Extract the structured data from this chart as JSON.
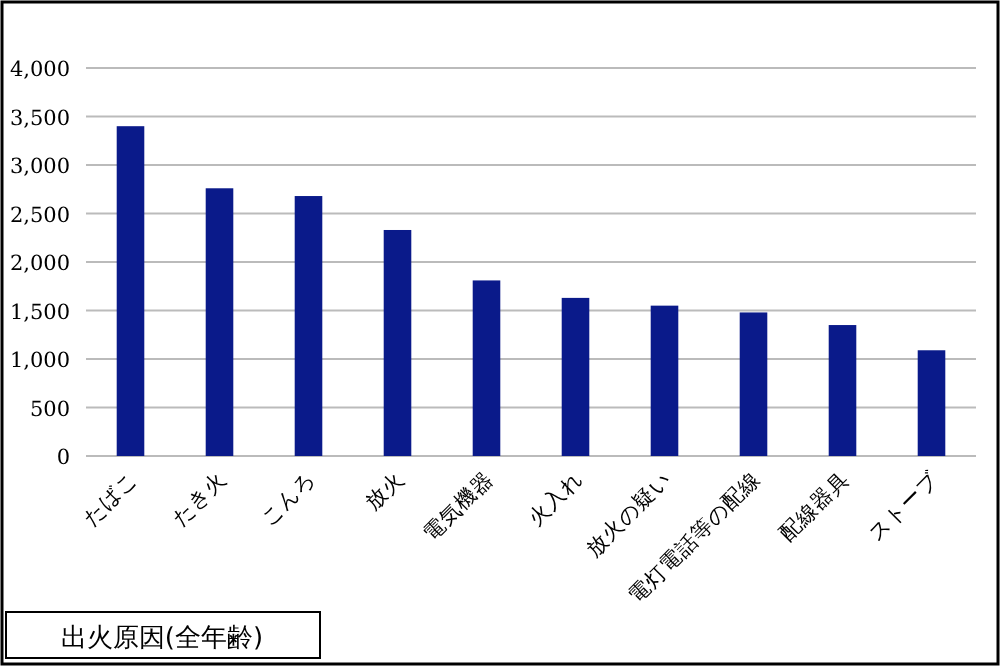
{
  "chart_data": {
    "type": "bar",
    "title": "出火原因(全年齢)",
    "categories": [
      "たばこ",
      "たき火",
      "こんろ",
      "放火",
      "電気機器",
      "火入れ",
      "放火の疑い",
      "電灯電話等の配線",
      "配線器具",
      "ストーブ"
    ],
    "values": [
      3400,
      2760,
      2680,
      2330,
      1810,
      1630,
      1550,
      1480,
      1350,
      1090
    ],
    "color": "#0a1a8a",
    "ylim": [
      0,
      4000
    ],
    "yticks": [
      {
        "value": 0,
        "label": "0"
      },
      {
        "value": 500,
        "label": "500"
      },
      {
        "value": 1000,
        "label": "1,000"
      },
      {
        "value": 1500,
        "label": "1,500"
      },
      {
        "value": 2000,
        "label": "2,000"
      },
      {
        "value": 2500,
        "label": "2,500"
      },
      {
        "value": 3000,
        "label": "3,000"
      },
      {
        "value": 3500,
        "label": "3,500"
      },
      {
        "value": 4000,
        "label": "4,000"
      }
    ],
    "grid": "y"
  }
}
